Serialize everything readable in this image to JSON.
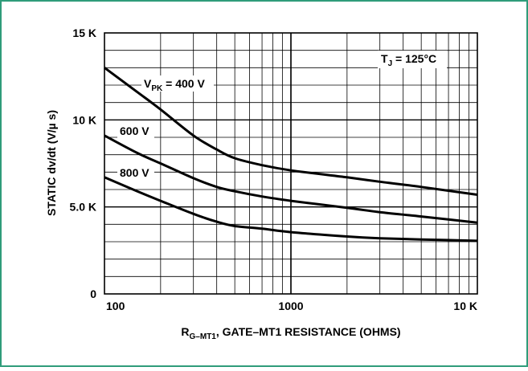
{
  "chart_data": {
    "type": "line",
    "x_scale": "log",
    "xlim": [
      100,
      10000
    ],
    "ylim": [
      0,
      15000
    ],
    "grid": true,
    "x_ticks": [
      {
        "value": 100,
        "label": "100"
      },
      {
        "value": 1000,
        "label": "1000"
      },
      {
        "value": 10000,
        "label": "10 K"
      }
    ],
    "y_ticks": [
      {
        "value": 0,
        "label": "0"
      },
      {
        "value": 5000,
        "label": "5.0 K"
      },
      {
        "value": 10000,
        "label": "10 K"
      },
      {
        "value": 15000,
        "label": "15 K"
      }
    ],
    "ylabel": "STATIC dv/dt (V/µ s)",
    "xlabel": {
      "prefix": "R",
      "subscript": "G–MT1",
      "rest": ", GATE–MT1 RESISTANCE (OHMS)"
    },
    "annotation": {
      "base": "T",
      "sub": "J",
      "rest": " = 125°C"
    },
    "series": [
      {
        "name": "400 V",
        "label_prefix": "V",
        "label_sub": "PK",
        "label_rest": " = 400 V",
        "x": [
          100,
          150,
          200,
          300,
          400,
          500,
          700,
          1000,
          2000,
          3000,
          5000,
          10000
        ],
        "values": [
          13000,
          11600,
          10600,
          9100,
          8300,
          7800,
          7400,
          7100,
          6700,
          6450,
          6150,
          5700
        ]
      },
      {
        "name": "600 V",
        "label": "600 V",
        "x": [
          100,
          150,
          200,
          300,
          400,
          500,
          700,
          1000,
          2000,
          3000,
          5000,
          10000
        ],
        "values": [
          9100,
          8100,
          7500,
          6650,
          6150,
          5900,
          5600,
          5350,
          4950,
          4700,
          4450,
          4100
        ]
      },
      {
        "name": "800 V",
        "label": "800 V",
        "x": [
          100,
          150,
          200,
          300,
          400,
          500,
          700,
          1000,
          2000,
          3000,
          5000,
          10000
        ],
        "values": [
          6700,
          5900,
          5350,
          4600,
          4150,
          3900,
          3750,
          3550,
          3300,
          3200,
          3130,
          3050
        ]
      }
    ],
    "colors": {
      "frame": "#2f9c7a",
      "ink": "#000000",
      "grid": "#000000"
    }
  }
}
